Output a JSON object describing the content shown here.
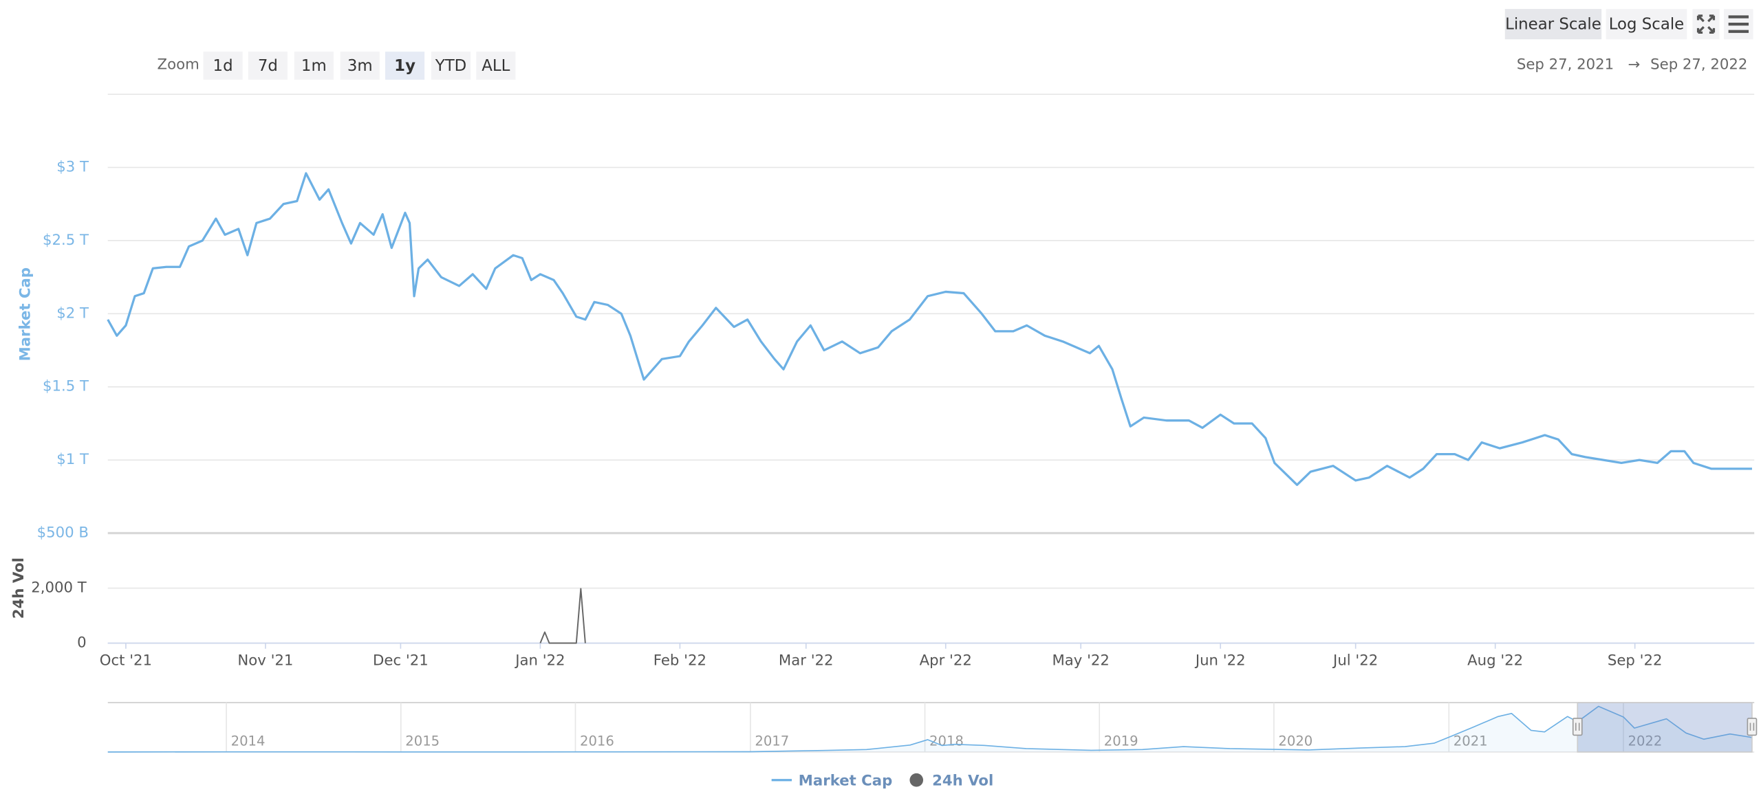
{
  "toolbar": {
    "scale_buttons": [
      "Linear Scale",
      "Log Scale"
    ],
    "selected_scale": "Linear Scale",
    "zoom_label": "Zoom",
    "zoom_buttons": [
      "1d",
      "7d",
      "1m",
      "3m",
      "1y",
      "YTD",
      "ALL"
    ],
    "selected_zoom": "1y",
    "range_from": "Sep 27, 2021",
    "range_arrow": "→",
    "range_to": "Sep 27, 2022"
  },
  "chart_data": [
    {
      "type": "line",
      "ylabel": "Market Cap",
      "y2label": "24h Vol",
      "xlim": [
        "2021-09-27",
        "2022-09-27"
      ],
      "xticks": [
        {
          "value": "2021-10-01",
          "label": "Oct '21"
        },
        {
          "value": "2021-11-01",
          "label": "Nov '21"
        },
        {
          "value": "2021-12-01",
          "label": "Dec '21"
        },
        {
          "value": "2022-01-01",
          "label": "Jan '22"
        },
        {
          "value": "2022-02-01",
          "label": "Feb '22"
        },
        {
          "value": "2022-03-01",
          "label": "Mar '22"
        },
        {
          "value": "2022-04-01",
          "label": "Apr '22"
        },
        {
          "value": "2022-05-01",
          "label": "May '22"
        },
        {
          "value": "2022-06-01",
          "label": "Jun '22"
        },
        {
          "value": "2022-07-01",
          "label": "Jul '22"
        },
        {
          "value": "2022-08-01",
          "label": "Aug '22"
        },
        {
          "value": "2022-09-01",
          "label": "Sep '22"
        }
      ],
      "ylim": [
        500000000000.0,
        3500000000000.0
      ],
      "yticks": [
        {
          "value": 500000000000.0,
          "label": "$500 B"
        },
        {
          "value": 1000000000000.0,
          "label": "$1 T"
        },
        {
          "value": 1500000000000.0,
          "label": "$1.5 T"
        },
        {
          "value": 2000000000000.0,
          "label": "$2 T"
        },
        {
          "value": 2500000000000.0,
          "label": "$2.5 T"
        },
        {
          "value": 3000000000000.0,
          "label": "$3 T"
        }
      ],
      "y2lim": [
        0,
        2000000000000000.0
      ],
      "y2ticks": [
        0,
        {
          "value": 2000000000000000.0,
          "label": "2,000 T"
        }
      ],
      "grid": true,
      "series": [
        {
          "name": "Market Cap",
          "color": "#6cb0e4",
          "axis": "y",
          "x": [
            "2021-09-27",
            "2021-09-29",
            "2021-10-01",
            "2021-10-03",
            "2021-10-05",
            "2021-10-07",
            "2021-10-10",
            "2021-10-13",
            "2021-10-15",
            "2021-10-18",
            "2021-10-21",
            "2021-10-23",
            "2021-10-26",
            "2021-10-28",
            "2021-10-30",
            "2021-11-02",
            "2021-11-05",
            "2021-11-08",
            "2021-11-10",
            "2021-11-13",
            "2021-11-15",
            "2021-11-18",
            "2021-11-20",
            "2021-11-22",
            "2021-11-25",
            "2021-11-27",
            "2021-11-29",
            "2021-12-02",
            "2021-12-03",
            "2021-12-04",
            "2021-12-05",
            "2021-12-07",
            "2021-12-10",
            "2021-12-14",
            "2021-12-17",
            "2021-12-20",
            "2021-12-22",
            "2021-12-26",
            "2021-12-28",
            "2021-12-30",
            "2022-01-01",
            "2022-01-04",
            "2022-01-06",
            "2022-01-09",
            "2022-01-11",
            "2022-01-13",
            "2022-01-16",
            "2022-01-19",
            "2022-01-21",
            "2022-01-23",
            "2022-01-24",
            "2022-01-28",
            "2022-02-01",
            "2022-02-03",
            "2022-02-06",
            "2022-02-09",
            "2022-02-13",
            "2022-02-16",
            "2022-02-19",
            "2022-02-22",
            "2022-02-24",
            "2022-02-27",
            "2022-03-02",
            "2022-03-05",
            "2022-03-09",
            "2022-03-13",
            "2022-03-17",
            "2022-03-20",
            "2022-03-24",
            "2022-03-28",
            "2022-04-01",
            "2022-04-05",
            "2022-04-09",
            "2022-04-12",
            "2022-04-16",
            "2022-04-19",
            "2022-04-23",
            "2022-04-27",
            "2022-04-30",
            "2022-05-03",
            "2022-05-05",
            "2022-05-08",
            "2022-05-10",
            "2022-05-12",
            "2022-05-15",
            "2022-05-20",
            "2022-05-25",
            "2022-05-28",
            "2022-06-01",
            "2022-06-04",
            "2022-06-08",
            "2022-06-11",
            "2022-06-13",
            "2022-06-15",
            "2022-06-18",
            "2022-06-21",
            "2022-06-26",
            "2022-07-01",
            "2022-07-04",
            "2022-07-08",
            "2022-07-13",
            "2022-07-16",
            "2022-07-19",
            "2022-07-23",
            "2022-07-26",
            "2022-07-29",
            "2022-08-02",
            "2022-08-07",
            "2022-08-12",
            "2022-08-15",
            "2022-08-18",
            "2022-08-21",
            "2022-08-25",
            "2022-08-29",
            "2022-09-02",
            "2022-09-06",
            "2022-09-09",
            "2022-09-12",
            "2022-09-14",
            "2022-09-18",
            "2022-09-22",
            "2022-09-27"
          ],
          "values": [
            1960000000000.0,
            1850000000000.0,
            1920000000000.0,
            2120000000000.0,
            2140000000000.0,
            2310000000000.0,
            2320000000000.0,
            2320000000000.0,
            2460000000000.0,
            2500000000000.0,
            2650000000000.0,
            2540000000000.0,
            2580000000000.0,
            2400000000000.0,
            2620000000000.0,
            2650000000000.0,
            2750000000000.0,
            2770000000000.0,
            2960000000000.0,
            2780000000000.0,
            2850000000000.0,
            2620000000000.0,
            2480000000000.0,
            2620000000000.0,
            2540000000000.0,
            2680000000000.0,
            2450000000000.0,
            2690000000000.0,
            2620000000000.0,
            2120000000000.0,
            2310000000000.0,
            2370000000000.0,
            2250000000000.0,
            2190000000000.0,
            2270000000000.0,
            2170000000000.0,
            2310000000000.0,
            2400000000000.0,
            2380000000000.0,
            2230000000000.0,
            2270000000000.0,
            2230000000000.0,
            2140000000000.0,
            1980000000000.0,
            1960000000000.0,
            2080000000000.0,
            2060000000000.0,
            2000000000000.0,
            1850000000000.0,
            1650000000000.0,
            1550000000000.0,
            1690000000000.0,
            1710000000000.0,
            1810000000000.0,
            1920000000000.0,
            2040000000000.0,
            1910000000000.0,
            1960000000000.0,
            1810000000000.0,
            1690000000000.0,
            1620000000000.0,
            1810000000000.0,
            1920000000000.0,
            1750000000000.0,
            1810000000000.0,
            1730000000000.0,
            1770000000000.0,
            1880000000000.0,
            1960000000000.0,
            2120000000000.0,
            2150000000000.0,
            2140000000000.0,
            2000000000000.0,
            1880000000000.0,
            1880000000000.0,
            1920000000000.0,
            1850000000000.0,
            1810000000000.0,
            1770000000000.0,
            1730000000000.0,
            1780000000000.0,
            1620000000000.0,
            1420000000000.0,
            1230000000000.0,
            1290000000000.0,
            1270000000000.0,
            1270000000000.0,
            1220000000000.0,
            1310000000000.0,
            1250000000000.0,
            1250000000000.0,
            1150000000000.0,
            980000000000.0,
            920000000000.0,
            830000000000.0,
            920000000000.0,
            960000000000.0,
            860000000000.0,
            880000000000.0,
            960000000000.0,
            880000000000.0,
            940000000000.0,
            1040000000000.0,
            1040000000000.0,
            1000000000000.0,
            1120000000000.0,
            1080000000000.0,
            1120000000000.0,
            1170000000000.0,
            1140000000000.0,
            1040000000000.0,
            1020000000000.0,
            1000000000000.0,
            980000000000.0,
            1000000000000.0,
            980000000000.0,
            1060000000000.0,
            1060000000000.0,
            980000000000.0,
            940000000000.0,
            940000000000.0,
            940000000000.0
          ]
        },
        {
          "name": "24h Vol",
          "color": "#666666",
          "axis": "y2",
          "x": [
            "2022-01-01",
            "2022-01-02",
            "2022-01-03",
            "2022-01-09",
            "2022-01-10",
            "2022-01-11"
          ],
          "values": [
            0,
            400000000000000.0,
            0,
            0,
            1980000000000000.0,
            0
          ]
        }
      ]
    },
    {
      "type": "line",
      "xlim": [
        "2013-04-28",
        "2022-09-27"
      ],
      "xticks": [
        {
          "value": "2014-01-01",
          "label": "2014"
        },
        {
          "value": "2015-01-01",
          "label": "2015"
        },
        {
          "value": "2016-01-01",
          "label": "2016"
        },
        {
          "value": "2017-01-01",
          "label": "2017"
        },
        {
          "value": "2018-01-01",
          "label": "2018"
        },
        {
          "value": "2019-01-01",
          "label": "2019"
        },
        {
          "value": "2020-01-01",
          "label": "2020"
        },
        {
          "value": "2021-01-01",
          "label": "2021"
        },
        {
          "value": "2022-01-01",
          "label": "2022"
        }
      ],
      "ylim": [
        0,
        3200000000000.0
      ],
      "series": [
        {
          "color": "#6cb0e4",
          "x": [
            "2013-04-28",
            "2014-01-01",
            "2015-01-01",
            "2016-01-01",
            "2017-01-01",
            "2017-06-01",
            "2017-09-01",
            "2017-12-01",
            "2018-01-07",
            "2018-02-06",
            "2018-03-05",
            "2018-05-05",
            "2018-08-01",
            "2018-12-15",
            "2019-04-01",
            "2019-06-26",
            "2019-10-01",
            "2020-03-13",
            "2020-07-01",
            "2020-10-01",
            "2020-12-01",
            "2021-01-08",
            "2021-02-20",
            "2021-04-14",
            "2021-05-12",
            "2021-06-22",
            "2021-07-20",
            "2021-09-06",
            "2021-09-27",
            "2021-11-10",
            "2022-01-01",
            "2022-01-24",
            "2022-04-01",
            "2022-05-12",
            "2022-06-18",
            "2022-08-12",
            "2022-09-27"
          ],
          "values": [
            1500000000.0,
            12000000000.0,
            6000000000.0,
            7000000000.0,
            18000000000.0,
            100000000000.0,
            160000000000.0,
            450000000000.0,
            800000000000.0,
            420000000000.0,
            500000000000.0,
            430000000000.0,
            220000000000.0,
            110000000000.0,
            160000000000.0,
            350000000000.0,
            220000000000.0,
            130000000000.0,
            260000000000.0,
            350000000000.0,
            570000000000.0,
            1050000000000.0,
            1600000000000.0,
            2300000000000.0,
            2500000000000.0,
            1400000000000.0,
            1300000000000.0,
            2300000000000.0,
            1960000000000.0,
            2960000000000.0,
            2270000000000.0,
            1550000000000.0,
            2150000000000.0,
            1230000000000.0,
            830000000000.0,
            1170000000000.0,
            940000000000.0
          ]
        }
      ]
    }
  ]
}
